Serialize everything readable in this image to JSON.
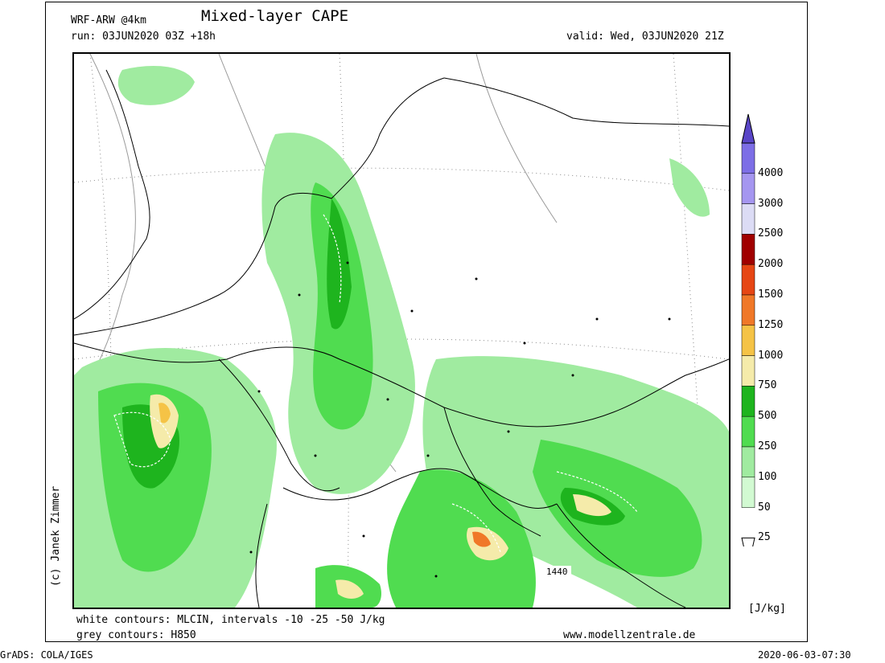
{
  "header": {
    "model": "WRF-ARW @4km",
    "title": "Mixed-layer CAPE",
    "run": "run: 03JUN2020 03Z +18h",
    "valid": "valid: Wed, 03JUN2020 21Z"
  },
  "footer": {
    "white_contours": "white contours: MLCIN, intervals -10 -25 -50 J/kg",
    "grey_contours": "grey contours: H850",
    "website": "www.modellzentrale.de",
    "grads": "GrADS: COLA/IGES",
    "timestamp": "2020-06-03-07:30"
  },
  "credit": "(c) Janek Zimmer",
  "map": {
    "contour_label": "1440"
  },
  "legend": {
    "unit": "[J/kg]",
    "levels": [
      "25",
      "50",
      "100",
      "250",
      "500",
      "750",
      "1000",
      "1250",
      "1500",
      "2000",
      "2500",
      "3000",
      "4000"
    ],
    "colors": [
      "#ffffff",
      "#d2fad2",
      "#a0eba0",
      "#50dc50",
      "#1eb41e",
      "#f5ebaa",
      "#f5c346",
      "#f07828",
      "#e64614",
      "#a00000",
      "#dcdcf5",
      "#a596f0",
      "#7d6ee6",
      "#5a46c8"
    ]
  }
}
